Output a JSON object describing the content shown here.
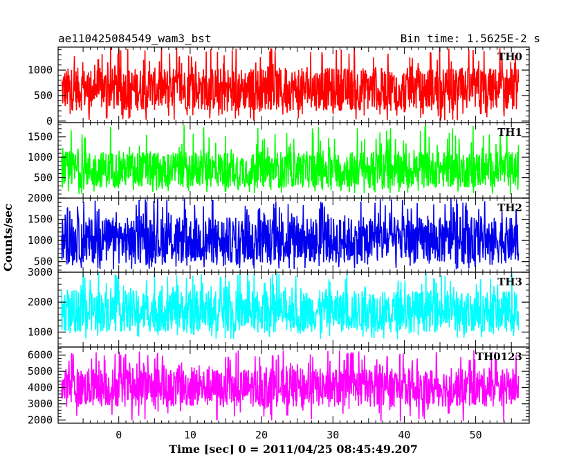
{
  "chart_data": {
    "type": "line",
    "title": "ae110425084549_wam3_bst",
    "bin_time_label": "Bin time: 1.5625E-2 s",
    "xlabel": "Time [sec] 0 = 2011/04/25 08:45:49.207",
    "ylabel": "Counts/sec",
    "xlim": [
      -8.5,
      57.5
    ],
    "x_ticks": [
      0,
      10,
      20,
      30,
      40,
      50
    ],
    "x_tick_labels": [
      "0",
      "10",
      "20",
      "30",
      "40",
      "50"
    ],
    "data_x_range": [
      -8.0,
      56.0
    ],
    "grid": false,
    "panels": [
      {
        "name": "TH0",
        "color": "#ff0000",
        "ylim": [
          -30,
          1450
        ],
        "y_ticks": [
          0,
          500,
          1000
        ],
        "y_tick_labels": [
          "0",
          "500",
          "1000"
        ],
        "typical_range": [
          200,
          1050
        ],
        "extremes": [
          0,
          1450
        ]
      },
      {
        "name": "TH1",
        "color": "#00ff00",
        "ylim": [
          0,
          1850
        ],
        "y_ticks": [
          500,
          1000,
          1500
        ],
        "y_tick_labels": [
          "500",
          "1000",
          "1500"
        ],
        "typical_range": [
          250,
          1150
        ],
        "extremes": [
          100,
          1800
        ]
      },
      {
        "name": "TH2",
        "color": "#0000ee",
        "ylim": [
          250,
          2000
        ],
        "y_ticks": [
          500,
          1000,
          1500,
          2000
        ],
        "y_tick_labels": [
          "500",
          "1000",
          "1500",
          "2000"
        ],
        "typical_range": [
          450,
          1550
        ],
        "extremes": [
          300,
          2000
        ]
      },
      {
        "name": "TH3",
        "color": "#00ffff",
        "ylim": [
          500,
          3000
        ],
        "y_ticks": [
          1000,
          2000,
          3000
        ],
        "y_tick_labels": [
          "1000",
          "2000",
          "3000"
        ],
        "typical_range": [
          1000,
          2400
        ],
        "extremes": [
          750,
          3000
        ]
      },
      {
        "name": "TH0123",
        "color": "#ff00ff",
        "ylim": [
          1800,
          6500
        ],
        "y_ticks": [
          2000,
          3000,
          4000,
          5000,
          6000
        ],
        "y_tick_labels": [
          "2000",
          "3000",
          "4000",
          "5000",
          "6000"
        ],
        "typical_range": [
          2800,
          5200
        ],
        "extremes": [
          1900,
          6300
        ]
      }
    ]
  }
}
